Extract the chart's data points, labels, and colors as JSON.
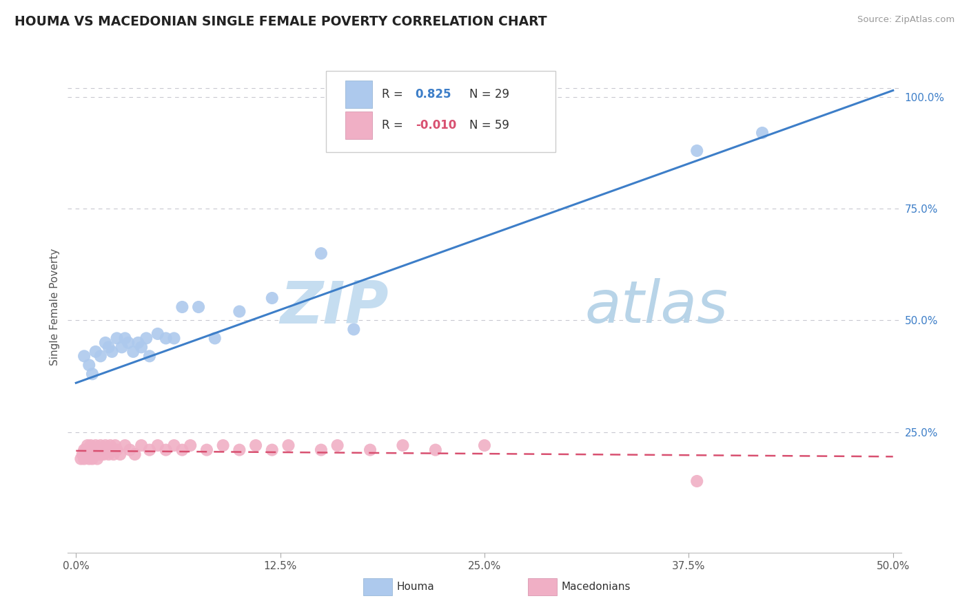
{
  "title": "HOUMA VS MACEDONIAN SINGLE FEMALE POVERTY CORRELATION CHART",
  "source_text": "Source: ZipAtlas.com",
  "ylabel": "Single Female Poverty",
  "xlim": [
    -0.005,
    0.505
  ],
  "ylim": [
    -0.02,
    1.08
  ],
  "xtick_vals": [
    0.0,
    0.125,
    0.25,
    0.375,
    0.5
  ],
  "xtick_labels": [
    "0.0%",
    "12.5%",
    "25.0%",
    "37.5%",
    "50.0%"
  ],
  "ytick_vals_right": [
    0.25,
    0.5,
    0.75,
    1.0
  ],
  "ytick_labels_right": [
    "25.0%",
    "50.0%",
    "75.0%",
    "100.0%"
  ],
  "grid_color": "#c8c8d0",
  "background_color": "#ffffff",
  "houma_color": "#adc9ed",
  "macedonian_color": "#f0afc5",
  "houma_line_color": "#3d7ec8",
  "macedonian_line_color": "#d85070",
  "houma_R": "0.825",
  "houma_N": "29",
  "macedonian_R": "-0.010",
  "macedonian_N": "59",
  "legend_label_houma": "Houma",
  "legend_label_macedonian": "Macedonians",
  "watermark_zip": "ZIP",
  "watermark_atlas": "atlas",
  "houma_x": [
    0.005,
    0.008,
    0.01,
    0.012,
    0.015,
    0.018,
    0.02,
    0.022,
    0.025,
    0.028,
    0.03,
    0.032,
    0.035,
    0.038,
    0.04,
    0.043,
    0.045,
    0.05,
    0.055,
    0.06,
    0.065,
    0.075,
    0.085,
    0.1,
    0.12,
    0.15,
    0.17,
    0.38,
    0.42
  ],
  "houma_y": [
    0.42,
    0.4,
    0.38,
    0.43,
    0.42,
    0.45,
    0.44,
    0.43,
    0.46,
    0.44,
    0.46,
    0.45,
    0.43,
    0.45,
    0.44,
    0.46,
    0.42,
    0.47,
    0.46,
    0.46,
    0.53,
    0.53,
    0.46,
    0.52,
    0.55,
    0.65,
    0.48,
    0.88,
    0.92
  ],
  "macedonian_x": [
    0.003,
    0.004,
    0.005,
    0.005,
    0.006,
    0.006,
    0.007,
    0.007,
    0.008,
    0.008,
    0.009,
    0.009,
    0.01,
    0.01,
    0.01,
    0.011,
    0.011,
    0.012,
    0.012,
    0.013,
    0.013,
    0.014,
    0.014,
    0.015,
    0.015,
    0.016,
    0.017,
    0.018,
    0.019,
    0.02,
    0.021,
    0.022,
    0.023,
    0.024,
    0.025,
    0.027,
    0.03,
    0.033,
    0.036,
    0.04,
    0.045,
    0.05,
    0.055,
    0.06,
    0.065,
    0.07,
    0.08,
    0.09,
    0.1,
    0.11,
    0.12,
    0.13,
    0.15,
    0.16,
    0.18,
    0.2,
    0.22,
    0.25,
    0.38
  ],
  "macedonian_y": [
    0.19,
    0.2,
    0.19,
    0.21,
    0.2,
    0.21,
    0.2,
    0.22,
    0.19,
    0.21,
    0.2,
    0.22,
    0.2,
    0.21,
    0.19,
    0.21,
    0.2,
    0.22,
    0.2,
    0.21,
    0.19,
    0.21,
    0.2,
    0.22,
    0.2,
    0.21,
    0.2,
    0.22,
    0.21,
    0.2,
    0.22,
    0.21,
    0.2,
    0.22,
    0.21,
    0.2,
    0.22,
    0.21,
    0.2,
    0.22,
    0.21,
    0.22,
    0.21,
    0.22,
    0.21,
    0.22,
    0.21,
    0.22,
    0.21,
    0.22,
    0.21,
    0.22,
    0.21,
    0.22,
    0.21,
    0.22,
    0.21,
    0.22,
    0.14
  ],
  "houma_line_x0": 0.0,
  "houma_line_y0": 0.36,
  "houma_line_x1": 0.5,
  "houma_line_y1": 1.015,
  "macedonian_line_x0": 0.0,
  "macedonian_line_y0": 0.208,
  "macedonian_line_x1": 0.5,
  "macedonian_line_y1": 0.195
}
